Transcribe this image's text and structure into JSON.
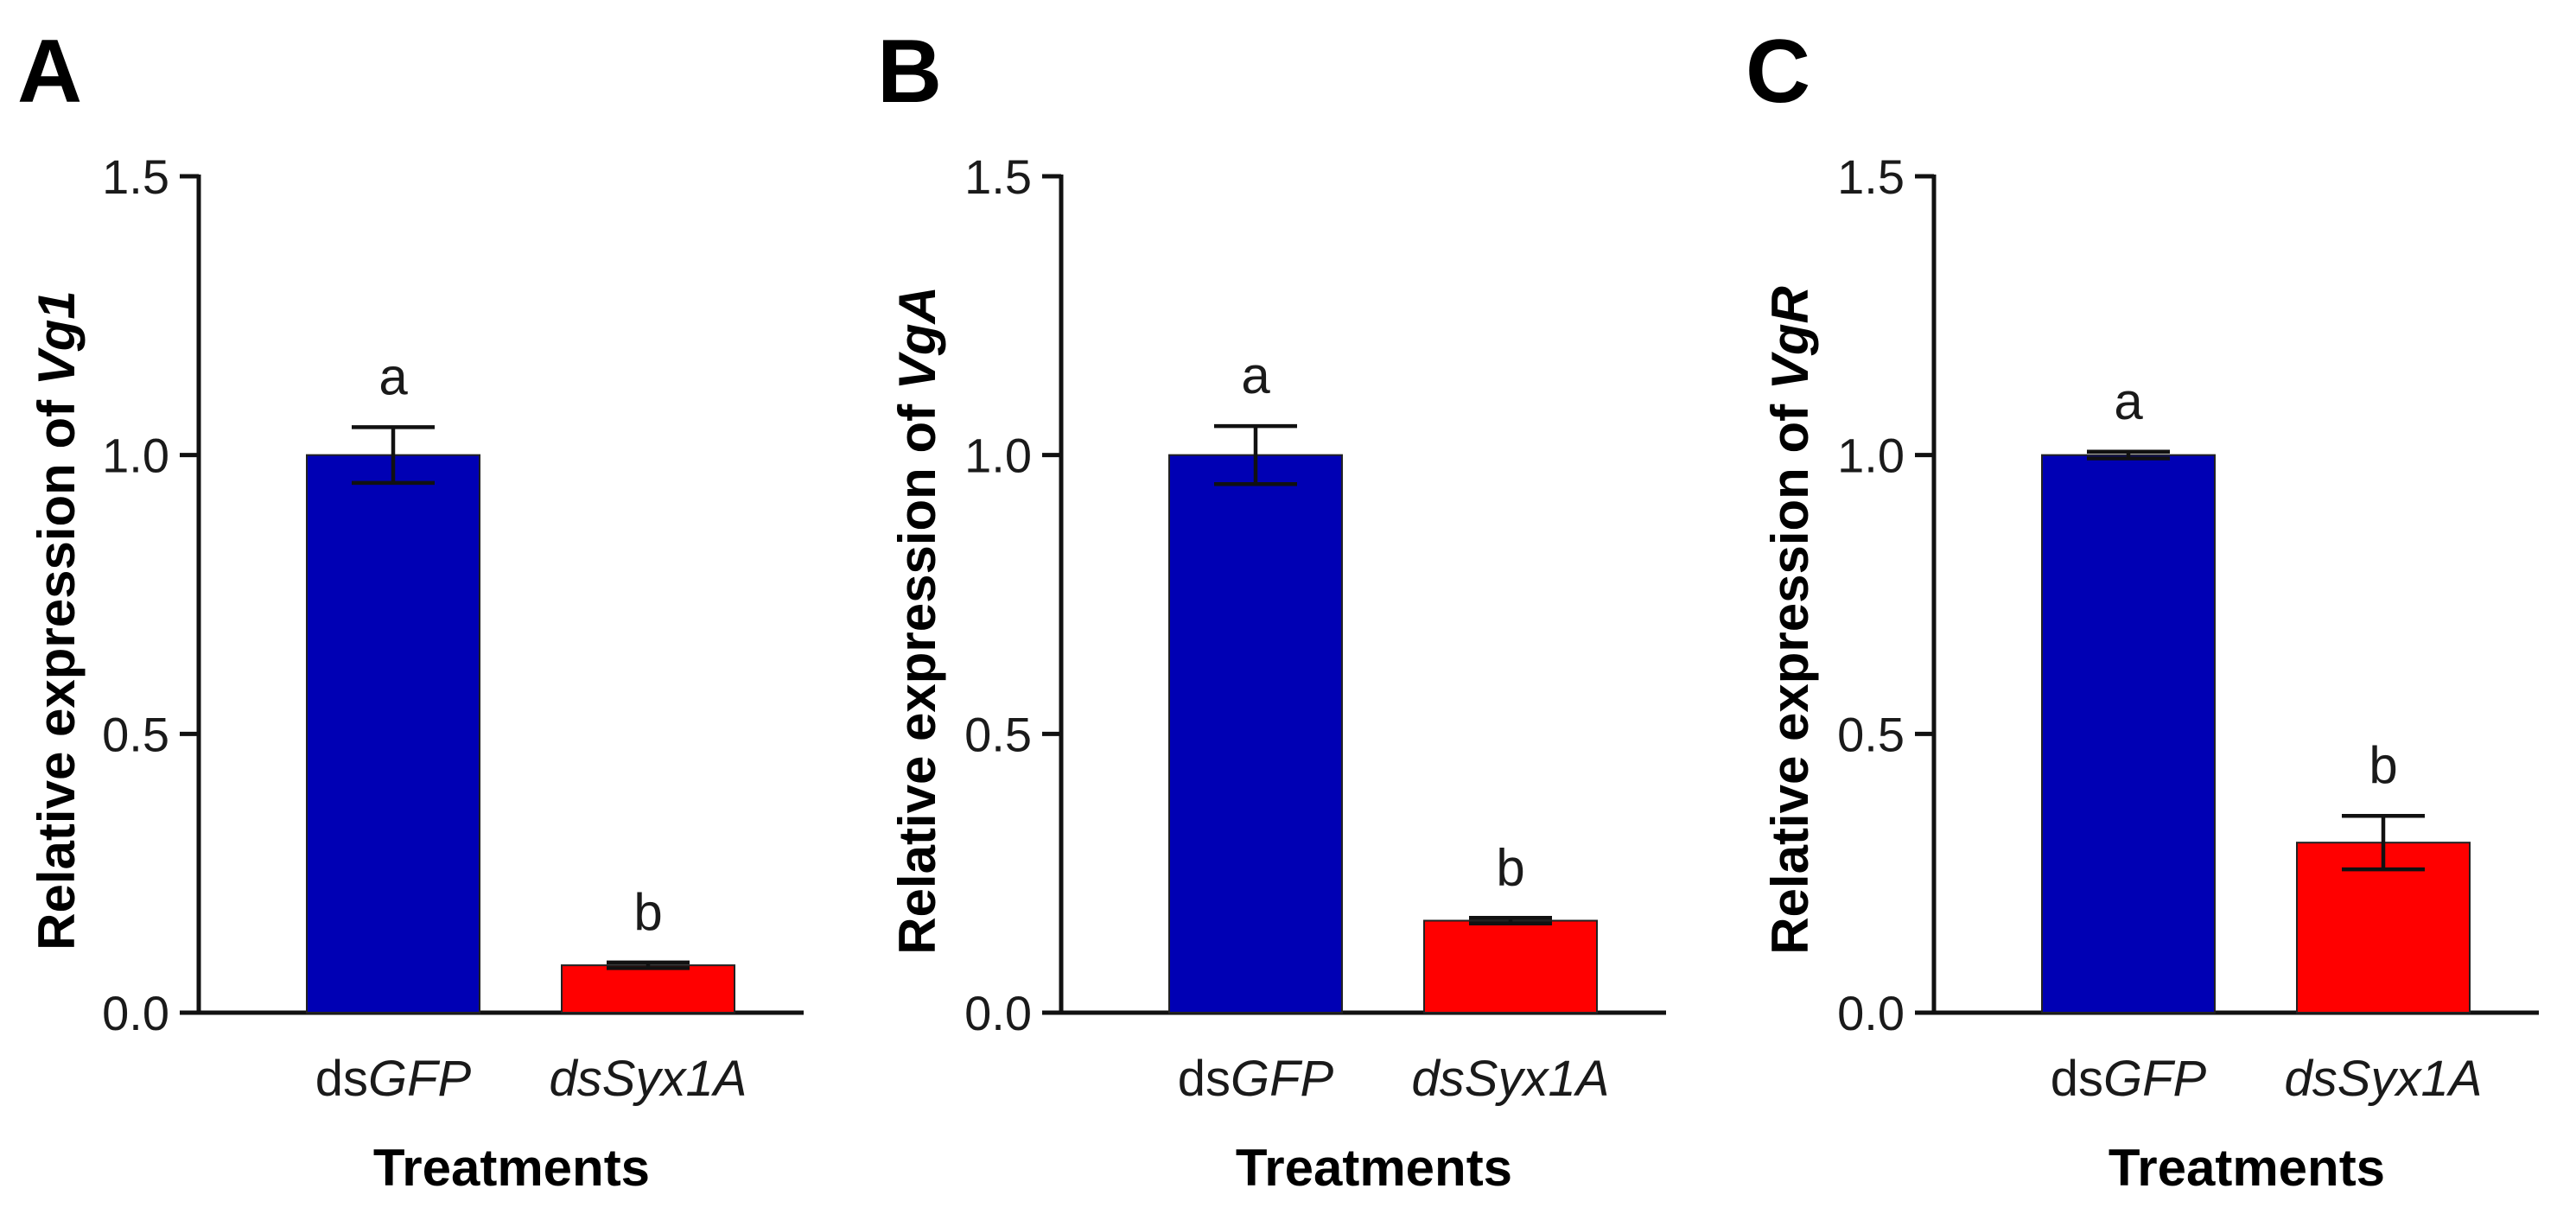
{
  "chart_data": [
    {
      "type": "bar",
      "panel": "A",
      "categories": [
        {
          "prefix": "ds",
          "italic": "GFP"
        },
        {
          "prefix": "",
          "italic": "dsSyx1A"
        }
      ],
      "values": [
        1.0,
        0.085
      ],
      "errors": [
        0.05,
        0.005
      ],
      "significance": [
        "a",
        "b"
      ],
      "colors": [
        "#0000b4",
        "#ff0000"
      ],
      "ylabel_prefix": "Relative expression of ",
      "ylabel_italic": "Vg1",
      "xlabel": "Treatments",
      "ylim": [
        0,
        1.5
      ],
      "yticks": [
        "0.0",
        "0.5",
        "1.0",
        "1.5"
      ]
    },
    {
      "type": "bar",
      "panel": "B",
      "categories": [
        {
          "prefix": "ds",
          "italic": "GFP"
        },
        {
          "prefix": "",
          "italic": "dsSyx1A"
        }
      ],
      "values": [
        1.0,
        0.165
      ],
      "errors": [
        0.052,
        0.005
      ],
      "significance": [
        "a",
        "b"
      ],
      "colors": [
        "#0000b4",
        "#ff0000"
      ],
      "ylabel_prefix": "Relative expression of ",
      "ylabel_italic": "VgA",
      "xlabel": "Treatments",
      "ylim": [
        0,
        1.5
      ],
      "yticks": [
        "0.0",
        "0.5",
        "1.0",
        "1.5"
      ]
    },
    {
      "type": "bar",
      "panel": "C",
      "categories": [
        {
          "prefix": "ds",
          "italic": "GFP"
        },
        {
          "prefix": "",
          "italic": "dsSyx1A"
        }
      ],
      "values": [
        1.0,
        0.305
      ],
      "errors": [
        0.006,
        0.048
      ],
      "significance": [
        "a",
        "b"
      ],
      "colors": [
        "#0000b4",
        "#ff0000"
      ],
      "ylabel_prefix": "Relative expression of ",
      "ylabel_italic": "VgR",
      "xlabel": "Treatments",
      "ylim": [
        0,
        1.5
      ],
      "yticks": [
        "0.0",
        "0.5",
        "1.0",
        "1.5"
      ]
    }
  ]
}
